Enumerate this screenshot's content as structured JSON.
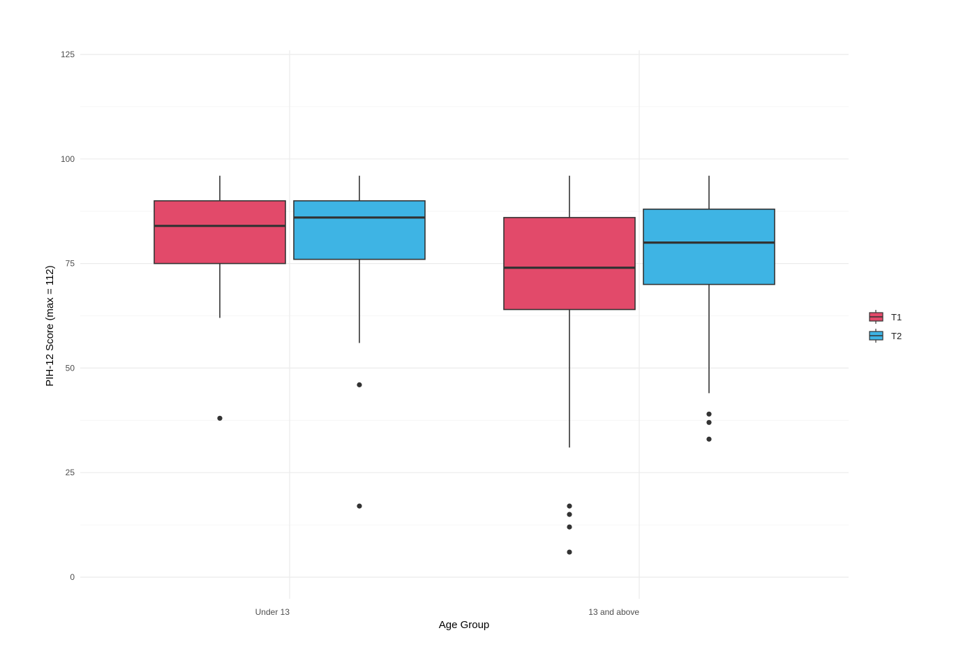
{
  "chart_data": {
    "type": "boxplot",
    "title": "",
    "xlabel": "Age Group",
    "ylabel": "PIH-12 Score (max = 112)",
    "ylim": [
      0,
      125
    ],
    "yticks": [
      0,
      25,
      50,
      75,
      100,
      125
    ],
    "ytick_labels": [
      "0",
      "25",
      "50",
      "75",
      "100",
      "125"
    ],
    "categories": [
      "Under 13",
      "13 and above"
    ],
    "grid": true,
    "legend": {
      "position": "right",
      "entries": [
        "T1",
        "T2"
      ]
    },
    "series": [
      {
        "name": "T1",
        "color": "#E24A6A",
        "boxes": [
          {
            "category": "Under 13",
            "whisker_low": 62,
            "q1": 75,
            "median": 84,
            "q3": 90,
            "whisker_high": 96,
            "outliers": [
              38
            ]
          },
          {
            "category": "13 and above",
            "whisker_low": 31,
            "q1": 64,
            "median": 74,
            "q3": 86,
            "whisker_high": 96,
            "outliers": [
              17,
              15,
              12,
              6
            ]
          }
        ]
      },
      {
        "name": "T2",
        "color": "#3EB4E4",
        "boxes": [
          {
            "category": "Under 13",
            "whisker_low": 56,
            "q1": 76,
            "median": 86,
            "q3": 90,
            "whisker_high": 96,
            "outliers": [
              46,
              17
            ]
          },
          {
            "category": "13 and above",
            "whisker_low": 44,
            "q1": 70,
            "median": 80,
            "q3": 88,
            "whisker_high": 96,
            "outliers": [
              39,
              37,
              33
            ]
          }
        ]
      }
    ]
  }
}
